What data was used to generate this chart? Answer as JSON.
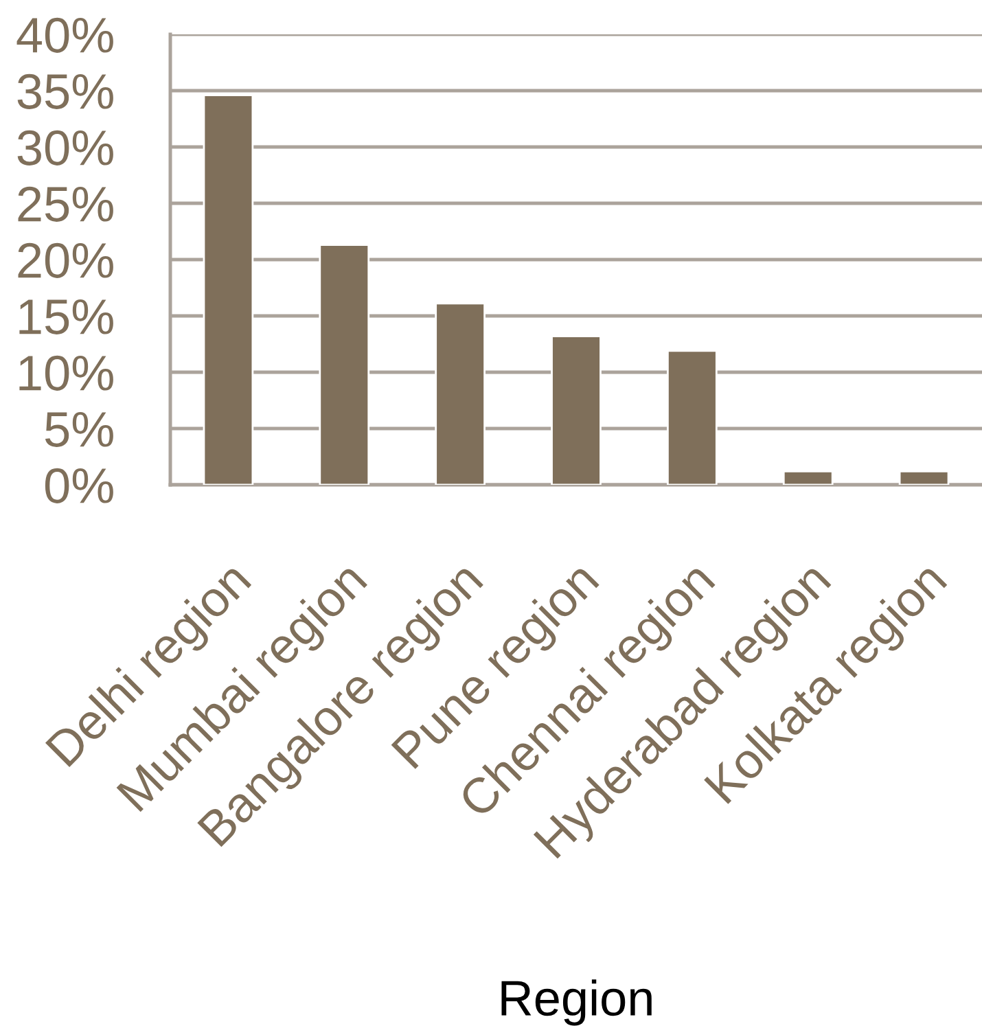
{
  "chart_data": {
    "type": "bar",
    "xlabel": "Region",
    "categories": [
      "Delhi region",
      "Mumbai region",
      "Bangalore region",
      "Pune region",
      "Chennai region",
      "Hyderabad region",
      "Kolkata region"
    ],
    "values": [
      34.6,
      21.3,
      16.1,
      13.2,
      11.9,
      1.2,
      1.2
    ],
    "color": "#7f6f5a",
    "ylim": [
      0,
      40
    ],
    "yticks": [
      {
        "value": 0,
        "label": "0%"
      },
      {
        "value": 5,
        "label": "5%"
      },
      {
        "value": 10,
        "label": "10%"
      },
      {
        "value": 15,
        "label": "15%"
      },
      {
        "value": 20,
        "label": "20%"
      },
      {
        "value": 25,
        "label": "25%"
      },
      {
        "value": 30,
        "label": "30%"
      },
      {
        "value": 35,
        "label": "35%"
      },
      {
        "value": 40,
        "label": "40%"
      }
    ],
    "grid": "y",
    "legend": false
  }
}
